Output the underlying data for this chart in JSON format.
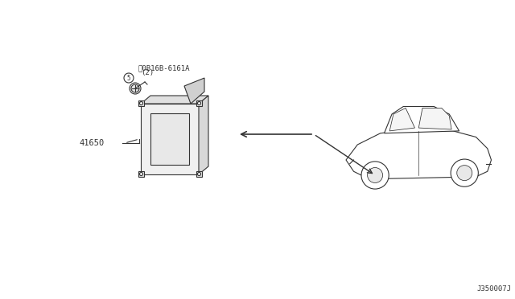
{
  "bg_color": "#ffffff",
  "line_color": "#333333",
  "text_color": "#333333",
  "part_label_1": "␄0B16B-6161A",
  "part_label_1b": "(2)",
  "part_label_2": "41650",
  "diagram_code": "J350007J",
  "figsize": [
    6.4,
    3.72
  ],
  "dpi": 100
}
